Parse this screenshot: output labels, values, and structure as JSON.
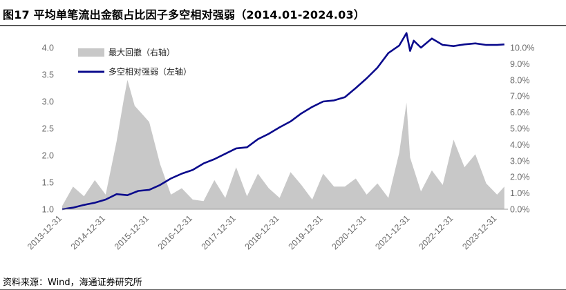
{
  "header": {
    "title": "图17 平均单笔流出金额占比因子多空相对强弱（2014.01-2024.03）"
  },
  "footer": {
    "source": "资料来源：Wind，海通证券研究所"
  },
  "chart_data": {
    "type": "line",
    "title": "图17 平均单笔流出金额占比因子多空相对强弱（2014.01-2024.03）",
    "x_tick_labels": [
      "2013-12-31",
      "2014-12-31",
      "2015-12-31",
      "2016-12-31",
      "2017-12-31",
      "2018-12-31",
      "2019-12-31",
      "2020-12-31",
      "2021-12-31",
      "2022-12-31",
      "2023-12-31"
    ],
    "y_left": {
      "lim": [
        1.0,
        4.0
      ],
      "ticks": [
        "1.0",
        "1.5",
        "2.0",
        "2.5",
        "3.0",
        "3.5",
        "4.0"
      ]
    },
    "y_right": {
      "lim": [
        0,
        10.0
      ],
      "unit": "%",
      "ticks": [
        "0.0%",
        "1.0%",
        "2.0%",
        "3.0%",
        "4.0%",
        "5.0%",
        "6.0%",
        "7.0%",
        "8.0%",
        "9.0%",
        "10.0%"
      ]
    },
    "legend": {
      "placement": "top-left",
      "entries": [
        "最大回撤（右轴）",
        "多空相对强弱（左轴）"
      ]
    },
    "colors": {
      "drawdown": "#c8c8c8",
      "strength": "#0a0a8c"
    },
    "series": [
      {
        "name": "多空相对强弱（左轴）",
        "axis": "left",
        "style": "line",
        "x": [
          "2014-01",
          "2014-04",
          "2014-07",
          "2014-10",
          "2015-01",
          "2015-04",
          "2015-07",
          "2015-10",
          "2016-01",
          "2016-04",
          "2016-07",
          "2016-10",
          "2017-01",
          "2017-04",
          "2017-07",
          "2017-10",
          "2018-01",
          "2018-04",
          "2018-07",
          "2018-10",
          "2019-01",
          "2019-04",
          "2019-07",
          "2019-10",
          "2020-01",
          "2020-04",
          "2020-07",
          "2020-10",
          "2021-01",
          "2021-04",
          "2021-07",
          "2021-10",
          "2021-12",
          "2022-01",
          "2022-02",
          "2022-04",
          "2022-07",
          "2022-10",
          "2023-01",
          "2023-04",
          "2023-07",
          "2023-10",
          "2024-01",
          "2024-03"
        ],
        "values": [
          1.0,
          1.03,
          1.08,
          1.12,
          1.18,
          1.28,
          1.26,
          1.34,
          1.36,
          1.45,
          1.57,
          1.66,
          1.73,
          1.85,
          1.93,
          2.03,
          2.13,
          2.15,
          2.3,
          2.4,
          2.52,
          2.63,
          2.78,
          2.9,
          3.0,
          3.02,
          3.08,
          3.25,
          3.43,
          3.63,
          3.9,
          4.04,
          4.27,
          3.94,
          4.13,
          4.0,
          4.17,
          4.05,
          4.03,
          4.06,
          4.08,
          4.05,
          4.05,
          4.06
        ]
      },
      {
        "name": "最大回撤（右轴）",
        "axis": "right",
        "style": "area",
        "x": [
          "2014-01",
          "2014-04",
          "2014-07",
          "2014-10",
          "2015-01",
          "2015-04",
          "2015-06",
          "2015-07",
          "2015-09",
          "2015-11",
          "2016-01",
          "2016-04",
          "2016-07",
          "2016-10",
          "2017-01",
          "2017-04",
          "2017-07",
          "2017-10",
          "2018-01",
          "2018-04",
          "2018-07",
          "2018-10",
          "2019-01",
          "2019-04",
          "2019-07",
          "2019-10",
          "2020-01",
          "2020-04",
          "2020-07",
          "2020-10",
          "2021-01",
          "2021-04",
          "2021-07",
          "2021-10",
          "2021-12",
          "2022-01",
          "2022-04",
          "2022-07",
          "2022-10",
          "2023-01",
          "2023-04",
          "2023-07",
          "2023-10",
          "2024-01",
          "2024-03"
        ],
        "values": [
          0.2,
          1.4,
          0.8,
          1.8,
          0.9,
          4.2,
          6.8,
          8.0,
          6.4,
          5.9,
          5.4,
          2.8,
          0.9,
          1.3,
          0.6,
          0.5,
          1.8,
          0.7,
          2.6,
          0.8,
          2.2,
          1.3,
          0.7,
          2.3,
          1.5,
          0.6,
          2.2,
          1.4,
          1.4,
          1.9,
          0.9,
          1.6,
          0.7,
          3.5,
          6.6,
          3.2,
          1.1,
          2.4,
          1.5,
          4.3,
          2.6,
          3.4,
          1.6,
          0.9,
          1.4
        ]
      }
    ]
  }
}
